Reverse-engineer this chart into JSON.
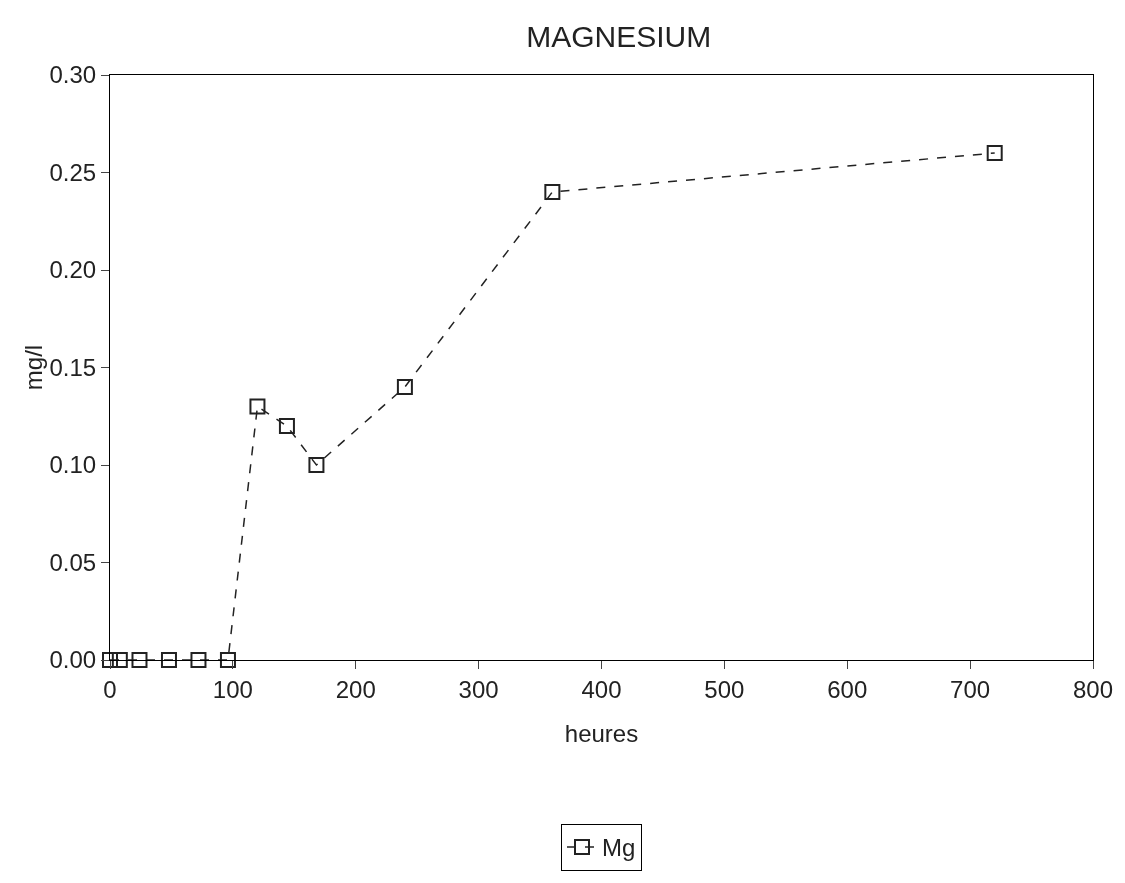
{
  "chart_data": {
    "type": "line",
    "title": "MAGNESIUM",
    "xlabel": "heures",
    "ylabel": "mg/l",
    "x": [
      0,
      8,
      24,
      48,
      72,
      96,
      120,
      144,
      168,
      240,
      360,
      720
    ],
    "series": [
      {
        "name": "Mg",
        "color": "#222222",
        "values": [
          0,
          0,
          0,
          0,
          0,
          0,
          0.13,
          0.12,
          0.1,
          0.14,
          0.24,
          0.26
        ]
      }
    ],
    "xlim": [
      0,
      800
    ],
    "xticks": [
      0,
      100,
      200,
      300,
      400,
      500,
      600,
      700,
      800
    ],
    "ylim": [
      0,
      0.3
    ],
    "yticks": [
      {
        "value": 0,
        "label": "0.00"
      },
      {
        "value": 0.05,
        "label": "0.05"
      },
      {
        "value": 0.1,
        "label": "0.10"
      },
      {
        "value": 0.15,
        "label": "0.15"
      },
      {
        "value": 0.2,
        "label": "0.20"
      },
      {
        "value": 0.25,
        "label": "0.25"
      },
      {
        "value": 0.3,
        "label": "0.30"
      }
    ],
    "grid": false,
    "legend": "bottom",
    "marker": "square",
    "line_style": "dashed"
  }
}
